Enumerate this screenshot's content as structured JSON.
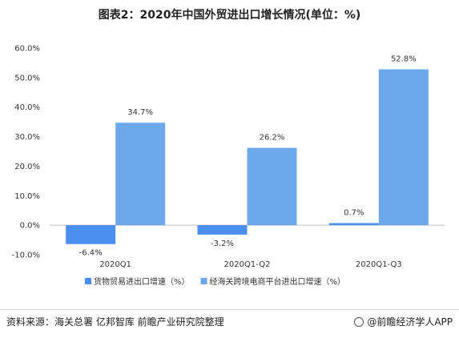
{
  "title": "图表2：2020年中国外贸进出口增长情况(单位：%)",
  "footer": {
    "source": "资料来源：海关总署 亿邦智库 前瞻产业研究院整理",
    "brand": "@前瞻经济学人APP"
  },
  "colors": {
    "series1": "#4a8ef0",
    "series2": "#6ea8ec"
  },
  "chart_data": {
    "type": "bar",
    "title": "图表2：2020年中国外贸进出口增长情况(单位：%)",
    "categories": [
      "2020Q1",
      "2020Q1-Q2",
      "2020Q1-Q3"
    ],
    "series": [
      {
        "name": "货物贸易进出口增速（%）",
        "values": [
          -6.4,
          -3.2,
          0.7
        ],
        "labels": [
          "-6.4%",
          "-3.2%",
          "0.7%"
        ]
      },
      {
        "name": "经海关跨境电商平台进出口增速（%）",
        "values": [
          34.7,
          26.2,
          52.8
        ],
        "labels": [
          "34.7%",
          "26.2%",
          "52.8%"
        ]
      }
    ],
    "yticks": [
      "60.0%",
      "50.0%",
      "40.0%",
      "30.0%",
      "20.0%",
      "10.0%",
      "0.0%",
      "-10.0%"
    ],
    "ylim": [
      -10,
      60
    ],
    "grid": false,
    "legend": "bottom"
  }
}
